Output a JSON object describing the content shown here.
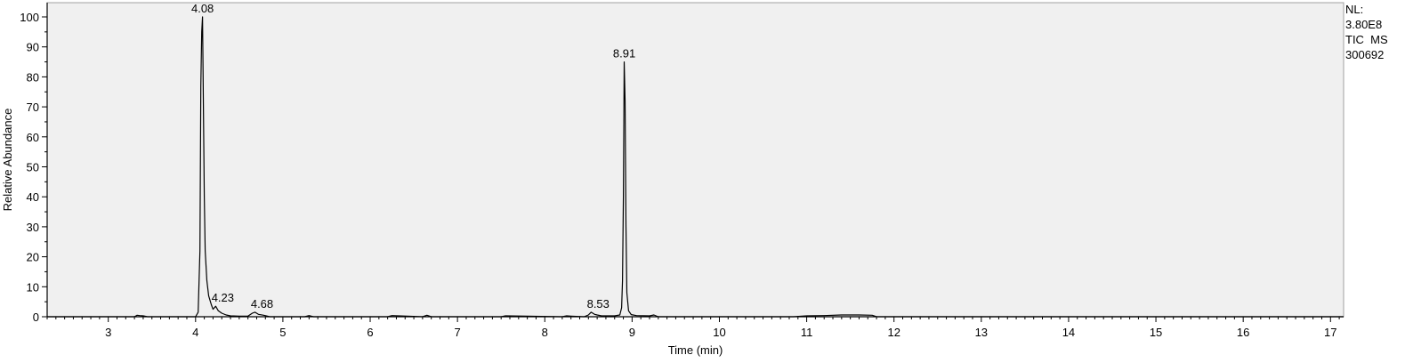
{
  "chart_data": {
    "type": "line",
    "xlabel": "Time (min)",
    "ylabel": "Relative Abundance",
    "xlim": [
      2.3,
      17.15
    ],
    "ylim": [
      0,
      100
    ],
    "x_ticks": [
      3,
      4,
      5,
      6,
      7,
      8,
      9,
      10,
      11,
      12,
      13,
      14,
      15,
      16,
      17
    ],
    "y_ticks": [
      0,
      10,
      20,
      30,
      40,
      50,
      60,
      70,
      80,
      90,
      100
    ],
    "grid": false,
    "background_color": "#f0f0f0",
    "line_color": "#000000",
    "peaks": [
      {
        "rt": 4.08,
        "label": "4.08",
        "height": 100
      },
      {
        "rt": 4.23,
        "label": "4.23",
        "height": 3.5
      },
      {
        "rt": 4.68,
        "label": "4.68",
        "height": 1.5
      },
      {
        "rt": 8.53,
        "label": "8.53",
        "height": 1.5
      },
      {
        "rt": 8.91,
        "label": "8.91",
        "height": 85
      }
    ],
    "series": [
      {
        "x": [
          2.3,
          3.3,
          3.33,
          3.36,
          3.4,
          3.45,
          4.0,
          4.03,
          4.05,
          4.06,
          4.07,
          4.08,
          4.09,
          4.1,
          4.11,
          4.13,
          4.15,
          4.18,
          4.2,
          4.23,
          4.26,
          4.3,
          4.35,
          4.4,
          4.5,
          4.6,
          4.65,
          4.68,
          4.72,
          4.78,
          4.85,
          5.25,
          5.3,
          5.35,
          6.2,
          6.25,
          6.6,
          6.65,
          6.7,
          7.5,
          7.55,
          8.2,
          8.25,
          8.3,
          8.45,
          8.5,
          8.53,
          8.57,
          8.6,
          8.65,
          8.8,
          8.86,
          8.88,
          8.89,
          8.9,
          8.91,
          8.92,
          8.93,
          8.94,
          8.96,
          8.99,
          9.05,
          9.2,
          9.25,
          9.3,
          10.85,
          11.0,
          11.2,
          11.4,
          11.6,
          11.75,
          11.8,
          17.15
        ],
        "y": [
          0,
          0,
          0.5,
          0.4,
          0.3,
          0,
          0,
          1.5,
          22,
          77,
          95,
          100,
          70,
          40,
          22,
          12,
          7,
          4,
          2.5,
          3.5,
          2,
          1.2,
          0.6,
          0.3,
          0.2,
          0.2,
          1.2,
          1.5,
          0.8,
          0.5,
          0,
          0,
          0.4,
          0,
          0,
          0.4,
          0,
          0.5,
          0,
          0,
          0.3,
          0,
          0.3,
          0.2,
          0,
          0.6,
          1.5,
          0.8,
          0.6,
          0.3,
          0.3,
          0.6,
          3,
          12,
          40,
          85,
          72,
          30,
          8,
          2,
          0.7,
          0.4,
          0.3,
          0.6,
          0,
          0,
          0.3,
          0.4,
          0.6,
          0.6,
          0.5,
          0,
          0
        ]
      }
    ],
    "annotation": [
      "NL:",
      "3.80E8",
      "TIC  MS",
      "300692"
    ]
  }
}
